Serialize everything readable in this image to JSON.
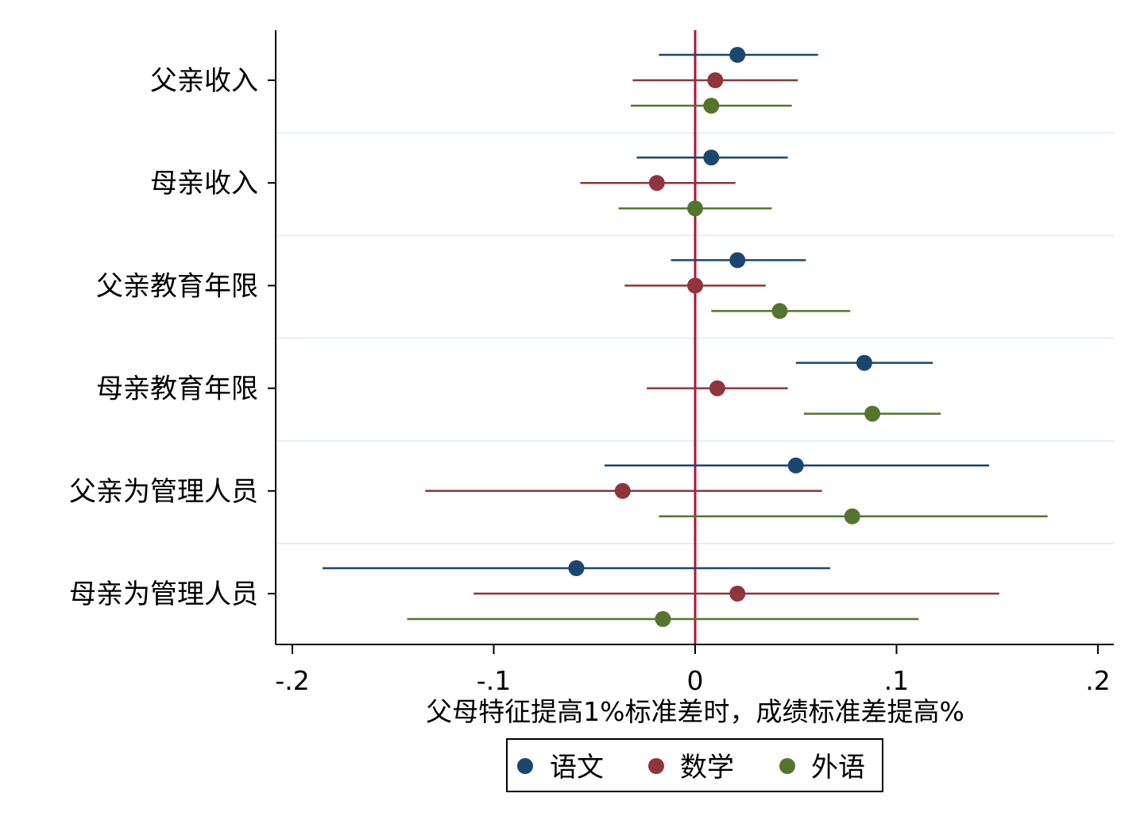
{
  "chart_data": {
    "type": "scatter",
    "subtype": "coefficient-plot-horizontal",
    "xlabel": "父母特征提高1%标准差时，成绩标准差提高%",
    "xlim": [
      -0.21,
      0.21
    ],
    "xticks": [
      -0.2,
      -0.1,
      0,
      0.1,
      0.2
    ],
    "xtick_labels": [
      "-.2",
      "-.1",
      "0",
      ".1",
      ".2"
    ],
    "reference_line": {
      "x": 0,
      "color": "#b0173a"
    },
    "grid": "horizontal separators between categories",
    "legend_position": "bottom-center",
    "categories": [
      "父亲收入",
      "母亲收入",
      "父亲教育年限",
      "母亲教育年限",
      "父亲为管理人员",
      "母亲为管理人员"
    ],
    "series": [
      {
        "name": "语文",
        "color": "#1a476f",
        "estimate": [
          0.021,
          0.008,
          0.021,
          0.084,
          0.05,
          -0.059
        ],
        "ci_low": [
          -0.018,
          -0.029,
          -0.012,
          0.05,
          -0.045,
          -0.185
        ],
        "ci_high": [
          0.061,
          0.046,
          0.055,
          0.118,
          0.146,
          0.067
        ]
      },
      {
        "name": "数学",
        "color": "#90353b",
        "estimate": [
          0.01,
          -0.019,
          0.0,
          0.011,
          -0.036,
          0.021
        ],
        "ci_low": [
          -0.031,
          -0.057,
          -0.035,
          -0.024,
          -0.134,
          -0.11
        ],
        "ci_high": [
          0.051,
          0.02,
          0.035,
          0.046,
          0.063,
          0.151
        ]
      },
      {
        "name": "外语",
        "color": "#55752f",
        "estimate": [
          0.008,
          0.0,
          0.042,
          0.088,
          0.078,
          -0.016
        ],
        "ci_low": [
          -0.032,
          -0.038,
          0.008,
          0.054,
          -0.018,
          -0.143
        ],
        "ci_high": [
          0.048,
          0.038,
          0.077,
          0.122,
          0.175,
          0.111
        ]
      }
    ]
  }
}
